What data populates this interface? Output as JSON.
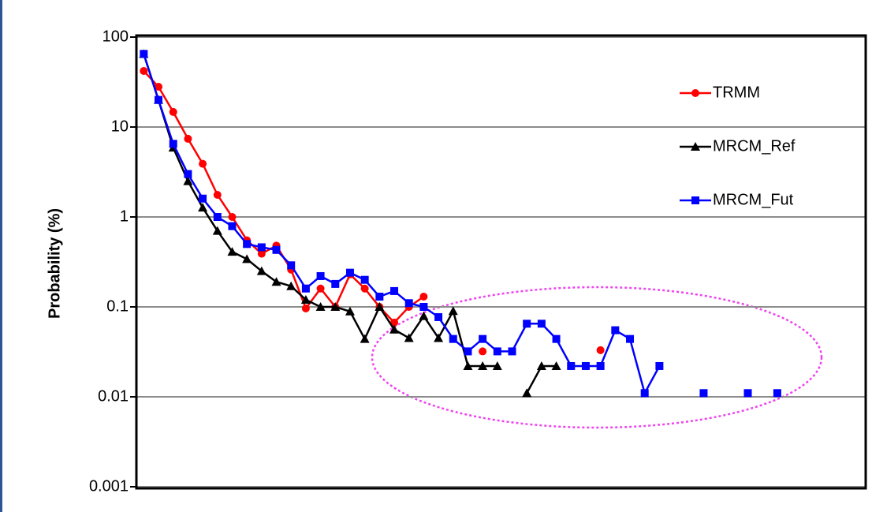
{
  "chart_data": {
    "type": "line",
    "y_label": "Probability (%)",
    "x": [
      1,
      2,
      3,
      4,
      5,
      6,
      7,
      8,
      9,
      10,
      11,
      12,
      13,
      14,
      15,
      16,
      17,
      18,
      19,
      20,
      21,
      22,
      23,
      24,
      25,
      26,
      27,
      28,
      29,
      30,
      31,
      32,
      33,
      34,
      35,
      36,
      37,
      38,
      39,
      40,
      41,
      42,
      43,
      44
    ],
    "xlim": [
      0.5,
      50
    ],
    "ylim": [
      0.001,
      100
    ],
    "yticks": [
      100,
      10,
      1,
      0.1,
      0.01,
      0.001
    ],
    "log_y": true,
    "grid": true,
    "legend": "upper right",
    "series": [
      {
        "name": "TRMM",
        "color": "#ff0000",
        "marker": "circle",
        "values": [
          42,
          28,
          14.7,
          7.4,
          3.9,
          1.76,
          1.0,
          0.55,
          0.39,
          0.48,
          0.26,
          0.096,
          0.16,
          0.1,
          0.23,
          0.16,
          0.1,
          0.067,
          0.1,
          0.13,
          null,
          null,
          null,
          0.032,
          null,
          null,
          null,
          null,
          null,
          null,
          null,
          0.033,
          null,
          null,
          null,
          null,
          null,
          null,
          null,
          null,
          null,
          null,
          null,
          null
        ]
      },
      {
        "name": "MRCM_Ref",
        "color": "#000000",
        "marker": "triangle",
        "values": [
          65,
          20,
          5.9,
          2.5,
          1.27,
          0.7,
          0.41,
          0.34,
          0.25,
          0.19,
          0.17,
          0.12,
          0.1,
          0.1,
          0.089,
          0.044,
          0.1,
          0.056,
          0.045,
          0.079,
          0.045,
          0.09,
          0.022,
          0.022,
          0.022,
          null,
          0.011,
          0.022,
          0.022,
          null,
          null,
          null,
          null,
          null,
          null,
          null,
          null,
          null,
          null,
          null,
          null,
          null,
          null,
          null
        ]
      },
      {
        "name": "MRCM_Fut",
        "color": "#0000ff",
        "marker": "square",
        "values": [
          65,
          20,
          6.5,
          3.0,
          1.6,
          1.0,
          0.79,
          0.5,
          0.46,
          0.43,
          0.29,
          0.16,
          0.22,
          0.18,
          0.24,
          0.2,
          0.13,
          0.15,
          0.11,
          0.1,
          0.077,
          0.044,
          0.032,
          0.044,
          0.032,
          0.032,
          0.065,
          0.065,
          0.044,
          0.022,
          0.022,
          0.022,
          0.055,
          0.044,
          0.011,
          0.022,
          null,
          null,
          0.011,
          null,
          null,
          0.011,
          null,
          0.011
        ]
      }
    ]
  }
}
